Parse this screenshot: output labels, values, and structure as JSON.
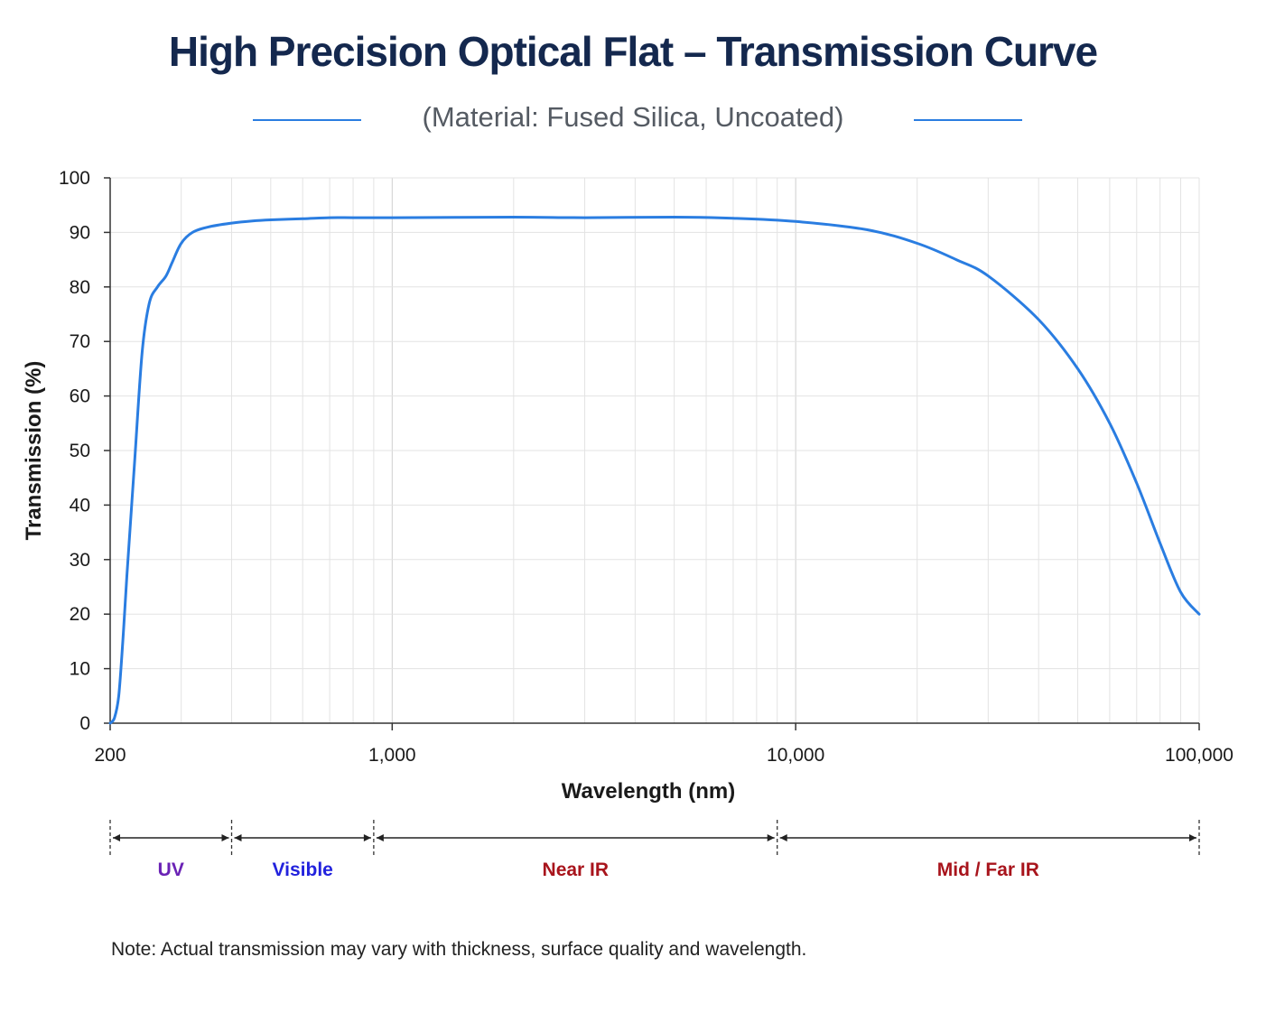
{
  "title": "High Precision Optical Flat – Transmission Curve",
  "subtitle": "(Material: Fused Silica, Uncoated)",
  "accent_color": "#2a7de1",
  "title_color": "#14284e",
  "chart_data": {
    "type": "line",
    "title": "High Precision Optical Flat – Transmission Curve",
    "subtitle": "(Material: Fused Silica, Uncoated)",
    "xlabel": "Wavelength (nm)",
    "ylabel": "Transmission (%)",
    "x_scale": "log",
    "xlim": [
      200,
      100000
    ],
    "ylim": [
      0,
      100
    ],
    "x_ticks": [
      200,
      1000,
      10000,
      100000
    ],
    "x_tick_labels": [
      "200",
      "1,000",
      "10,000",
      "100,000"
    ],
    "y_ticks": [
      0,
      10,
      20,
      30,
      40,
      50,
      60,
      70,
      80,
      90,
      100
    ],
    "y_tick_labels": [
      "0",
      "10",
      "20",
      "30",
      "40",
      "50",
      "60",
      "70",
      "80",
      "90",
      "100"
    ],
    "grid": true,
    "series": [
      {
        "color": "#2a7de1",
        "x": [
          200,
          205,
          210,
          215,
          220,
          230,
          240,
          250,
          262,
          275,
          285,
          300,
          320,
          350,
          400,
          450,
          500,
          600,
          700,
          800,
          1000,
          2000,
          3000,
          5000,
          7000,
          10000,
          15000,
          20000,
          25000,
          30000,
          40000,
          50000,
          60000,
          70000,
          80000,
          90000,
          100000
        ],
        "y": [
          0,
          1,
          5,
          15,
          27,
          48,
          68,
          77,
          80,
          82,
          84.5,
          88,
          90,
          91,
          91.7,
          92.1,
          92.3,
          92.5,
          92.7,
          92.7,
          92.7,
          92.8,
          92.7,
          92.8,
          92.6,
          92,
          90.5,
          88,
          85,
          82,
          74,
          65,
          55,
          44,
          33,
          24,
          20
        ]
      }
    ],
    "regions": [
      {
        "label": "UV",
        "from": 200,
        "to": 400,
        "color": "#6a22b5"
      },
      {
        "label": "Visible",
        "from": 400,
        "to": 900,
        "color": "#2222dd"
      },
      {
        "label": "Near IR",
        "from": 900,
        "to": 9000,
        "color": "#a8141c"
      },
      {
        "label": "Mid / Far IR",
        "from": 9000,
        "to": 100000,
        "color": "#a8141c"
      }
    ]
  },
  "note": "Note: Actual transmission may vary with thickness, surface quality and wavelength."
}
